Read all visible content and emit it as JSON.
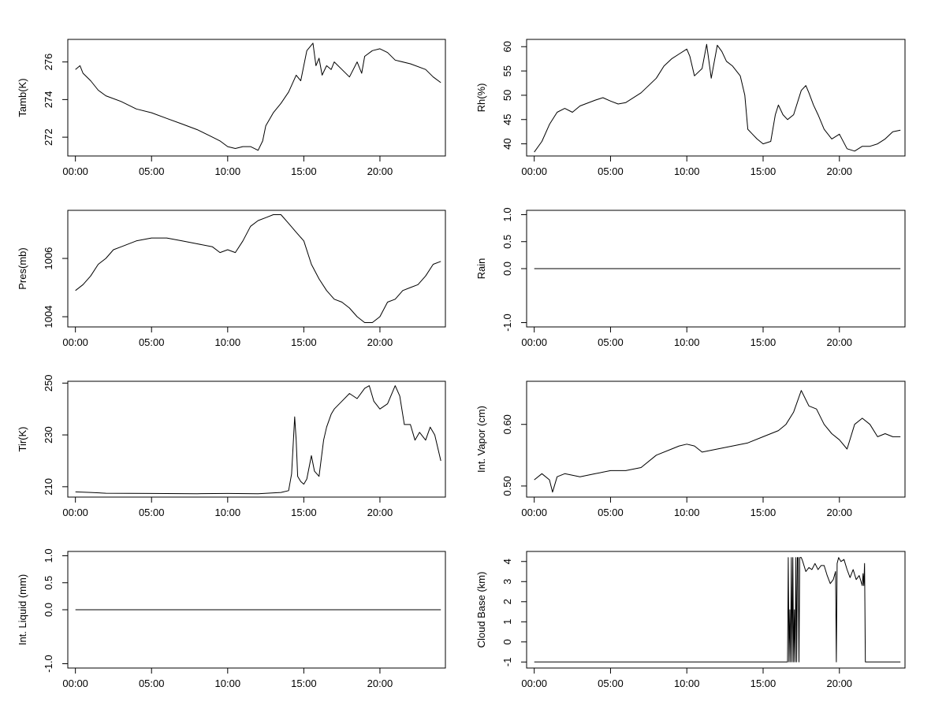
{
  "chart_data": [
    {
      "type": "line",
      "ylabel": "Tamb(K)",
      "x_ticks": [
        "00:00",
        "05:00",
        "10:00",
        "15:00",
        "20:00"
      ],
      "y_ticks": [
        "272",
        "274",
        "276"
      ],
      "ylim": [
        271.0,
        277.2
      ],
      "xlim_hours": [
        -0.5,
        24.3
      ],
      "x_hours": [
        0.0,
        0.3,
        0.5,
        1.0,
        1.5,
        2.0,
        3.0,
        4.0,
        5.0,
        6.0,
        7.0,
        8.0,
        9.0,
        9.5,
        10.0,
        10.5,
        11.0,
        11.5,
        12.0,
        12.3,
        12.5,
        13.0,
        13.5,
        14.0,
        14.5,
        14.8,
        15.2,
        15.6,
        15.8,
        16.0,
        16.2,
        16.5,
        16.8,
        17.0,
        17.5,
        18.0,
        18.5,
        18.8,
        19.0,
        19.5,
        20.0,
        20.5,
        21.0,
        22.0,
        23.0,
        23.5,
        24.0
      ],
      "y": [
        275.6,
        275.8,
        275.4,
        275.0,
        274.5,
        274.2,
        273.9,
        273.5,
        273.3,
        273.0,
        272.7,
        272.4,
        272.0,
        271.8,
        271.5,
        271.4,
        271.5,
        271.5,
        271.3,
        271.8,
        272.6,
        273.3,
        273.8,
        274.4,
        275.3,
        275.0,
        276.6,
        277.0,
        275.8,
        276.2,
        275.3,
        275.8,
        275.6,
        276.0,
        275.6,
        275.2,
        276.0,
        275.4,
        276.3,
        276.6,
        276.7,
        276.5,
        276.1,
        275.9,
        275.6,
        275.2,
        274.9
      ]
    },
    {
      "type": "line",
      "ylabel": "Rh(%)",
      "x_ticks": [
        "00:00",
        "05:00",
        "10:00",
        "15:00",
        "20:00"
      ],
      "y_ticks": [
        "40",
        "45",
        "50",
        "55",
        "60"
      ],
      "ylim": [
        37.5,
        61.5
      ],
      "xlim_hours": [
        -0.5,
        24.3
      ],
      "x_hours": [
        0.0,
        0.5,
        1.0,
        1.5,
        2.0,
        2.5,
        3.0,
        4.0,
        4.5,
        5.0,
        5.5,
        6.0,
        7.0,
        8.0,
        8.5,
        9.0,
        9.5,
        10.0,
        10.2,
        10.5,
        11.0,
        11.3,
        11.6,
        12.0,
        12.3,
        12.6,
        13.0,
        13.5,
        13.8,
        14.0,
        14.3,
        14.6,
        15.0,
        15.5,
        15.8,
        16.0,
        16.3,
        16.6,
        17.0,
        17.5,
        17.8,
        18.0,
        18.3,
        18.6,
        19.0,
        19.5,
        20.0,
        20.5,
        21.0,
        21.5,
        22.0,
        22.5,
        23.0,
        23.5,
        24.0
      ],
      "y": [
        38.3,
        40.5,
        44.0,
        46.5,
        47.3,
        46.5,
        47.8,
        49.0,
        49.5,
        48.8,
        48.2,
        48.5,
        50.5,
        53.5,
        56.0,
        57.5,
        58.5,
        59.5,
        58.0,
        54.0,
        55.5,
        60.5,
        53.5,
        60.3,
        59.0,
        57.0,
        56.0,
        54.0,
        50.0,
        43.0,
        42.0,
        41.0,
        40.0,
        40.5,
        46.0,
        48.0,
        46.0,
        45.0,
        46.0,
        51.0,
        52.0,
        50.5,
        48.0,
        46.0,
        43.0,
        41.0,
        42.0,
        39.0,
        38.5,
        39.5,
        39.5,
        40.0,
        41.0,
        42.5,
        42.8
      ]
    },
    {
      "type": "line",
      "ylabel": "Pres(mb)",
      "x_ticks": [
        "00:00",
        "05:00",
        "10:00",
        "15:00",
        "20:00"
      ],
      "y_ticks": [
        "1004",
        "1006"
      ],
      "ylim": [
        1003.65,
        1007.65
      ],
      "xlim_hours": [
        -0.5,
        24.3
      ],
      "x_hours": [
        0.0,
        0.5,
        1.0,
        1.5,
        2.0,
        2.5,
        3.0,
        4.0,
        5.0,
        6.0,
        7.0,
        8.0,
        9.0,
        9.5,
        10.0,
        10.5,
        11.0,
        11.5,
        12.0,
        12.5,
        13.0,
        13.5,
        14.0,
        14.5,
        15.0,
        15.5,
        16.0,
        16.5,
        17.0,
        17.5,
        18.0,
        18.5,
        19.0,
        19.5,
        20.0,
        20.5,
        21.0,
        21.5,
        22.0,
        22.5,
        23.0,
        23.5,
        24.0
      ],
      "y": [
        1004.9,
        1005.1,
        1005.4,
        1005.8,
        1006.0,
        1006.3,
        1006.4,
        1006.6,
        1006.7,
        1006.7,
        1006.6,
        1006.5,
        1006.4,
        1006.2,
        1006.3,
        1006.2,
        1006.6,
        1007.1,
        1007.3,
        1007.4,
        1007.5,
        1007.5,
        1007.2,
        1006.9,
        1006.6,
        1005.8,
        1005.3,
        1004.9,
        1004.6,
        1004.5,
        1004.3,
        1004.0,
        1003.8,
        1003.8,
        1004.0,
        1004.5,
        1004.6,
        1004.9,
        1005.0,
        1005.1,
        1005.4,
        1005.8,
        1005.9
      ]
    },
    {
      "type": "line",
      "ylabel": "Rain",
      "x_ticks": [
        "00:00",
        "05:00",
        "10:00",
        "15:00",
        "20:00"
      ],
      "y_ticks": [
        "-1.0",
        "0.0",
        "0.5",
        "1.0"
      ],
      "ylim": [
        -1.08,
        1.08
      ],
      "xlim_hours": [
        -0.5,
        24.3
      ],
      "x_hours": [
        0.0,
        24.0
      ],
      "y": [
        0.0,
        0.0
      ]
    },
    {
      "type": "line",
      "ylabel": "Tir(K)",
      "x_ticks": [
        "00:00",
        "05:00",
        "10:00",
        "15:00",
        "20:00"
      ],
      "y_ticks": [
        "210",
        "230",
        "250"
      ],
      "ylim": [
        206.0,
        250.7
      ],
      "xlim_hours": [
        -0.5,
        24.3
      ],
      "x_hours": [
        0.0,
        1.0,
        2.0,
        5.0,
        8.0,
        10.0,
        12.0,
        13.5,
        14.0,
        14.2,
        14.4,
        14.5,
        14.6,
        14.8,
        15.0,
        15.2,
        15.5,
        15.7,
        16.0,
        16.3,
        16.5,
        16.8,
        17.0,
        17.5,
        18.0,
        18.5,
        19.0,
        19.3,
        19.6,
        20.0,
        20.5,
        21.0,
        21.3,
        21.6,
        22.0,
        22.3,
        22.6,
        23.0,
        23.3,
        23.6,
        24.0
      ],
      "y": [
        208.0,
        207.8,
        207.5,
        207.4,
        207.3,
        207.4,
        207.3,
        207.8,
        208.5,
        215.0,
        237.0,
        228.0,
        214.0,
        212.0,
        211.0,
        213.0,
        222.0,
        216.0,
        214.0,
        228.0,
        233.0,
        238.0,
        240.0,
        243.0,
        246.0,
        244.0,
        248.0,
        249.0,
        243.0,
        240.0,
        242.0,
        249.0,
        245.0,
        234.0,
        234.0,
        228.0,
        231.0,
        228.0,
        233.0,
        230.0,
        220.0
      ]
    },
    {
      "type": "line",
      "ylabel": "Int. Vapor (cm)",
      "x_ticks": [
        "00:00",
        "05:00",
        "10:00",
        "15:00",
        "20:00"
      ],
      "y_ticks": [
        "0.50",
        "0.60"
      ],
      "ylim": [
        0.482,
        0.67
      ],
      "xlim_hours": [
        -0.5,
        24.3
      ],
      "x_hours": [
        0.0,
        0.5,
        1.0,
        1.2,
        1.5,
        2.0,
        3.0,
        4.0,
        5.0,
        6.0,
        7.0,
        8.0,
        9.0,
        9.5,
        10.0,
        10.5,
        11.0,
        12.0,
        13.0,
        14.0,
        15.0,
        16.0,
        16.5,
        17.0,
        17.5,
        18.0,
        18.5,
        19.0,
        19.5,
        20.0,
        20.5,
        21.0,
        21.5,
        22.0,
        22.5,
        23.0,
        23.5,
        24.0
      ],
      "y": [
        0.51,
        0.52,
        0.51,
        0.49,
        0.515,
        0.52,
        0.515,
        0.52,
        0.525,
        0.525,
        0.53,
        0.55,
        0.56,
        0.565,
        0.568,
        0.565,
        0.555,
        0.56,
        0.565,
        0.57,
        0.58,
        0.59,
        0.6,
        0.62,
        0.655,
        0.63,
        0.625,
        0.6,
        0.585,
        0.575,
        0.56,
        0.6,
        0.61,
        0.6,
        0.58,
        0.585,
        0.58,
        0.58
      ]
    },
    {
      "type": "line",
      "ylabel": "Int. Liquid (mm)",
      "x_ticks": [
        "00:00",
        "05:00",
        "10:00",
        "15:00",
        "20:00"
      ],
      "y_ticks": [
        "-1.0",
        "0.0",
        "0.5",
        "1.0"
      ],
      "ylim": [
        -1.08,
        1.08
      ],
      "xlim_hours": [
        -0.5,
        24.3
      ],
      "x_hours": [
        0.0,
        24.0
      ],
      "y": [
        0.0,
        0.0
      ]
    },
    {
      "type": "line",
      "ylabel": "Cloud Base (km)",
      "x_ticks": [
        "00:00",
        "05:00",
        "10:00",
        "15:00",
        "20:00"
      ],
      "y_ticks": [
        "-1",
        "0",
        "1",
        "2",
        "3",
        "4"
      ],
      "ylim": [
        -1.3,
        4.5
      ],
      "xlim_hours": [
        -0.5,
        24.3
      ],
      "x_hours": [
        0.0,
        16.6,
        16.65,
        16.7,
        16.75,
        16.8,
        16.85,
        16.9,
        16.95,
        17.0,
        17.05,
        17.1,
        17.15,
        17.2,
        17.25,
        17.3,
        17.35,
        17.4,
        17.45,
        17.5,
        17.6,
        17.8,
        18.0,
        18.2,
        18.4,
        18.6,
        18.8,
        19.0,
        19.2,
        19.4,
        19.6,
        19.75,
        19.8,
        19.85,
        19.95,
        20.1,
        20.3,
        20.5,
        20.7,
        20.9,
        21.1,
        21.3,
        21.5,
        21.55,
        21.6,
        21.65,
        21.7,
        21.8,
        22.5,
        23.0,
        24.0
      ],
      "y": [
        -1.0,
        -1.0,
        4.2,
        -1.0,
        1.6,
        -1.0,
        4.2,
        -1.0,
        4.2,
        -1.0,
        1.6,
        -1.0,
        4.2,
        -1.0,
        4.2,
        4.2,
        -1.0,
        4.2,
        4.2,
        4.2,
        4.0,
        3.5,
        3.7,
        3.6,
        3.9,
        3.6,
        3.8,
        3.8,
        3.3,
        2.9,
        3.1,
        3.5,
        -1.0,
        3.9,
        4.2,
        4.0,
        4.1,
        3.6,
        3.2,
        3.6,
        3.1,
        3.3,
        2.8,
        3.4,
        2.8,
        3.9,
        -1.0,
        -1.0,
        -1.0,
        -1.0,
        -1.0
      ]
    }
  ]
}
